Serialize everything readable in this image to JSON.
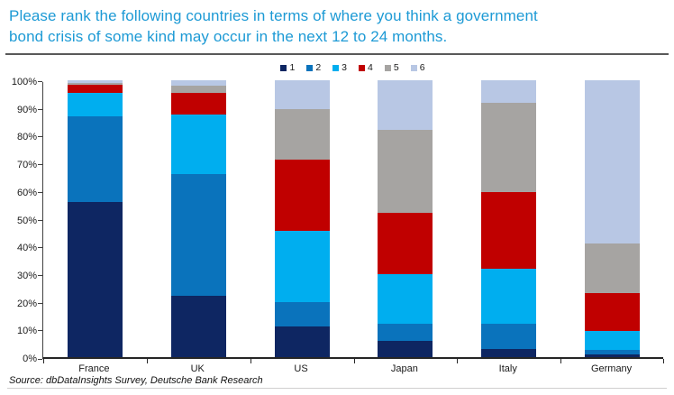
{
  "title_line1": "Please rank the following countries in terms of where you think a government",
  "title_line2": "bond crisis of some kind may occur in the next 12 to 24 months.",
  "source_note": "Source: dbDataInsights Survey, Deutsche Bank Research",
  "accent_colors": {
    "title_blue": "#1d9ad5",
    "divider_gray": "#595959",
    "axis_color": "#404040"
  },
  "chart_data": {
    "type": "bar",
    "stacked": true,
    "stack_total": 100,
    "title": "",
    "xlabel": "",
    "ylabel": "",
    "ylim": [
      0,
      100
    ],
    "grid": false,
    "legend_position": "top-center",
    "categories": [
      "France",
      "UK",
      "US",
      "Japan",
      "Italy",
      "Germany"
    ],
    "ytick_labels": [
      "0%",
      "10%",
      "20%",
      "30%",
      "40%",
      "50%",
      "60%",
      "70%",
      "80%",
      "90%",
      "100%"
    ],
    "series": [
      {
        "name": "1",
        "color": "#0e2662",
        "values": [
          56,
          22,
          11,
          6,
          3,
          1
        ]
      },
      {
        "name": "2",
        "color": "#0a73bc",
        "values": [
          31,
          44,
          9,
          6,
          9,
          1.5
        ]
      },
      {
        "name": "3",
        "color": "#00aeef",
        "values": [
          8.5,
          21.5,
          25.5,
          18,
          20,
          7
        ]
      },
      {
        "name": "4",
        "color": "#c00000",
        "values": [
          3,
          8,
          26,
          22,
          27.5,
          13.5
        ]
      },
      {
        "name": "5",
        "color": "#a6a4a2",
        "values": [
          0.5,
          2.5,
          18,
          30,
          32.5,
          18
        ]
      },
      {
        "name": "6",
        "color": "#b8c7e4",
        "values": [
          1,
          2,
          10.5,
          18,
          8,
          59
        ]
      }
    ]
  }
}
